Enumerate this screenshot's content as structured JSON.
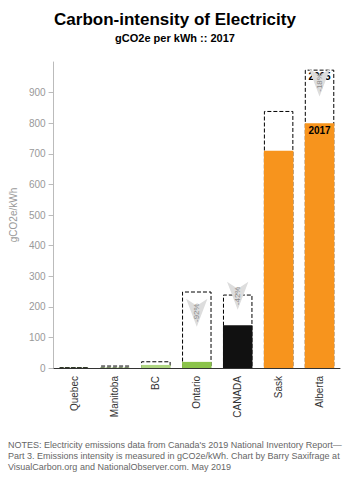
{
  "chart_data": {
    "type": "bar",
    "title": "Carbon-intensity of Electricity",
    "subtitle": "gCO2e per kWh :: 2017",
    "y_label": "gCO2e/kWh",
    "categories": [
      "Quebec",
      "Manitoba",
      "BC",
      "Ontario",
      "CANADA",
      "Sask",
      "Alberta"
    ],
    "series": [
      {
        "name": "2005",
        "values": [
          3,
          8,
          22,
          250,
          240,
          840,
          975
        ],
        "color": "#000000",
        "line_style": "dashed"
      },
      {
        "name": "2017",
        "values": [
          1,
          2,
          10,
          20,
          140,
          710,
          800
        ],
        "colors": [
          "#c5e1a5",
          "#c5e1a5",
          "#aed581",
          "#8bc34a",
          "#111111",
          "#f7941d",
          "#f7941d"
        ]
      }
    ],
    "ylim": [
      0,
      1000
    ],
    "yticks": [
      0,
      100,
      200,
      300,
      400,
      500,
      600,
      700,
      800,
      900
    ],
    "grid": false,
    "annotations": [
      {
        "category": "Ontario",
        "text": "-92%"
      },
      {
        "category": "CANADA",
        "text": "-42%"
      },
      {
        "category": "Alberta",
        "text": "-18%"
      }
    ],
    "notes": "NOTES: Electricity emissions data from Canada's 2019 National Inventory Report— Part 3. Emissions intensity is measured in gCO2e/kWh. Chart by Barry Saxifrage at VisualCarbon.org and NationalObserver.com. May 2019"
  }
}
